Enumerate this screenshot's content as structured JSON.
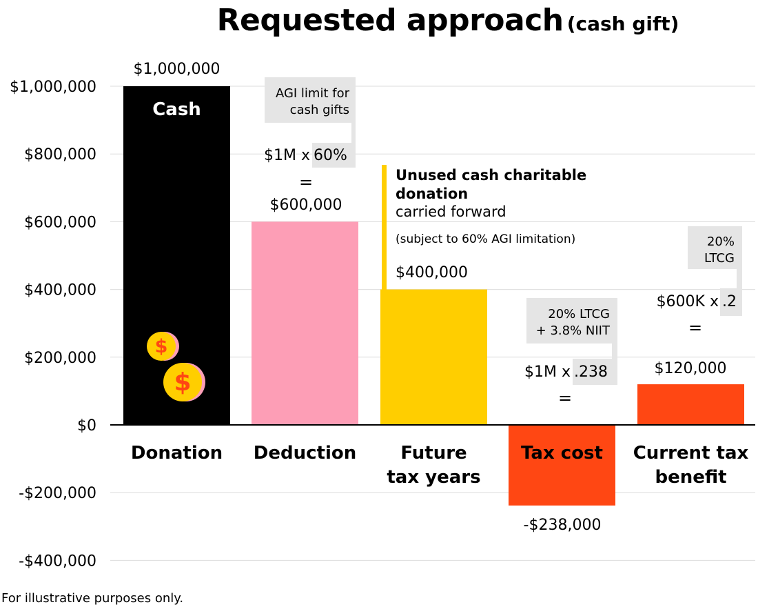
{
  "title": "Requested approach",
  "subtitle": "(cash gift)",
  "footnote": "For illustrative purposes only.",
  "colors": {
    "cash": "#000000",
    "deduction": "#fd9eb6",
    "future": "#ffce00",
    "tax_cost": "#ff4713",
    "benefit": "#ff4713",
    "grid": "#dcdcdc",
    "note_bg": "#e5e5e5",
    "coin": "#ffce00",
    "coin_shadow": "#fd9eb6",
    "coin_symbol": "#ff4713"
  },
  "chart_data": {
    "type": "bar",
    "title": "Requested approach",
    "subtitle": "(cash gift)",
    "categories": [
      "Donation",
      "Deduction",
      "Future tax years",
      "Tax cost",
      "Current tax benefit"
    ],
    "values": [
      1000000,
      600000,
      400000,
      -238000,
      120000
    ],
    "value_labels": [
      "$1,000,000",
      "$600,000",
      "$400,000",
      "-$238,000",
      "$120,000"
    ],
    "ylim": [
      -400000,
      1000000
    ],
    "yticks": [
      -400000,
      -200000,
      0,
      200000,
      400000,
      600000,
      800000,
      1000000
    ],
    "ytick_labels": [
      "-$400,000",
      "-$200,000",
      "$0",
      "$200,000",
      "$400,000",
      "$600,000",
      "$800,000",
      "$1,000,000"
    ],
    "grid": true,
    "bar_text": "Cash",
    "annotations": {
      "agi_note": [
        "AGI limit for",
        "cash gifts"
      ],
      "deduction_calc_prefix": "$1M x ",
      "deduction_calc_highlight": "60%",
      "equals": "=",
      "carry_title": [
        "Unused cash charitable",
        "donation"
      ],
      "carry_body": "carried forward",
      "carry_sub": "(subject to 60% AGI limitation)",
      "taxcost_note": [
        "20% LTCG",
        "+ 3.8% NIIT"
      ],
      "taxcost_calc_prefix": "$1M x ",
      "taxcost_calc_highlight": ".238",
      "benefit_note": [
        "20%",
        "LTCG"
      ],
      "benefit_calc_prefix": "$600K x ",
      "benefit_calc_highlight": ".2"
    }
  }
}
